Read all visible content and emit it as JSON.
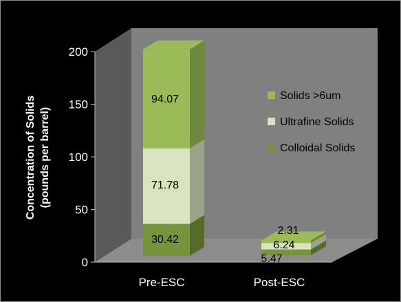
{
  "chart_data": {
    "type": "bar",
    "stacked": true,
    "three_d": true,
    "categories": [
      "Pre-ESC",
      "Post-ESC"
    ],
    "series": [
      {
        "name": "Colloidal Solids",
        "values": [
          30.42,
          5.47
        ],
        "color": "#77933c"
      },
      {
        "name": "Ultrafine Solids",
        "values": [
          71.78,
          6.24
        ],
        "color": "#d7e4bd"
      },
      {
        "name": "Solids >6um",
        "values": [
          94.07,
          2.31
        ],
        "color": "#9bbb59"
      }
    ],
    "data_labels": [
      [
        "30.42",
        "5.47"
      ],
      [
        "71.78",
        "6.24"
      ],
      [
        "94.07",
        "2.31"
      ]
    ],
    "ylabel_lines": [
      "Concentration of Solids",
      "(pounds per barrel)"
    ],
    "xlabel": "",
    "ylim": [
      0,
      200
    ],
    "yticks": [
      "0",
      "50",
      "100",
      "150",
      "200"
    ],
    "grid": false,
    "legend_position": "right-inside",
    "background": "#000000",
    "wall_color": "#808080",
    "floor_color": "#8c8c8c"
  }
}
